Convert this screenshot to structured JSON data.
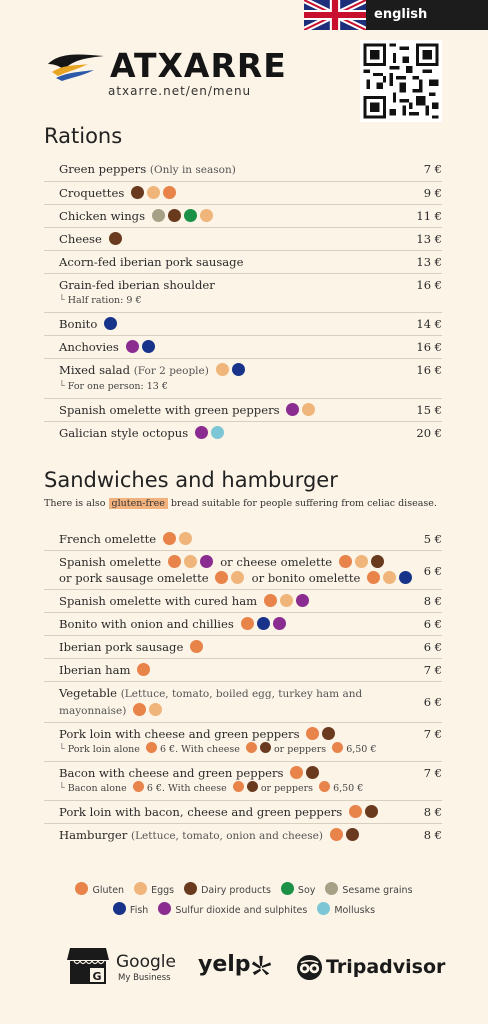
{
  "header": {
    "language": "english",
    "logo_text": "ATXARRE",
    "url": "atxarre.net/en/menu"
  },
  "rations": {
    "title": "Rations",
    "items": [
      {
        "name": "Green peppers",
        "note": "(Only in season)",
        "allergens": [],
        "price": "7 €"
      },
      {
        "name": "Croquettes",
        "allergens": [
          "dairy",
          "eggs",
          "gluten"
        ],
        "price": "9 €"
      },
      {
        "name": "Chicken wings",
        "allergens": [
          "sesame",
          "dairy",
          "soy",
          "eggs"
        ],
        "price": "11 €"
      },
      {
        "name": "Cheese",
        "allergens": [
          "dairy"
        ],
        "price": "13 €"
      },
      {
        "name": "Acorn-fed iberian pork sausage",
        "allergens": [],
        "price": "13 €"
      },
      {
        "name": "Grain-fed iberian shoulder",
        "allergens": [],
        "price": "16 €",
        "sub": "Half ration: 9 €"
      },
      {
        "name": "Bonito",
        "allergens": [
          "fish"
        ],
        "price": "14 €"
      },
      {
        "name": "Anchovies",
        "allergens": [
          "sulfur",
          "fish"
        ],
        "price": "16 €"
      },
      {
        "name": "Mixed salad",
        "note": "(For 2 people)",
        "allergens": [
          "eggs",
          "fish"
        ],
        "price": "16 €",
        "sub": "For one person: 13 €"
      },
      {
        "name": "Spanish omelette with green peppers",
        "allergens": [
          "sulfur",
          "eggs"
        ],
        "price": "15 €"
      },
      {
        "name": "Galician style octopus",
        "allergens": [
          "sulfur",
          "mollusks"
        ],
        "price": "20 €"
      }
    ]
  },
  "sandwiches": {
    "title": "Sandwiches and hamburger",
    "gf_before": "There is also ",
    "gf_word": "gluten-free",
    "gf_after": " bread suitable for people suffering from celiac disease.",
    "price": {
      "french": "5 €",
      "omelette": "6 €",
      "cured": "8 €",
      "bonito": "6 €",
      "iberian_sausage": "6 €",
      "iberian_ham": "7 €",
      "vegetable": "6 €",
      "pork_loin": "7 €",
      "bacon": "7 €",
      "loin_bacon": "8 €",
      "hamburger": "8 €"
    },
    "text": {
      "french": "French omelette",
      "omelette_a": "Spanish omelette",
      "omelette_b": "or cheese omelette",
      "omelette_c": "or pork sausage omelette",
      "omelette_d": "or bonito omelette",
      "cured": "Spanish omelette with cured ham",
      "bonito": "Bonito with onion and chillies",
      "iberian_sausage": "Iberian pork sausage",
      "iberian_ham": "Iberian ham",
      "vegetable": "Vegetable",
      "vegetable_note_1": "(Lettuce, tomato, boiled egg, turkey ham and",
      "vegetable_note_2": "mayonnaise)",
      "pork_loin": "Pork loin with cheese and green peppers",
      "pork_sub_a": "Pork loin alone",
      "pork_sub_b": "6 €. With cheese",
      "pork_sub_c": "or peppers",
      "pork_sub_d": "6,50 €",
      "bacon": "Bacon with cheese and green peppers",
      "bacon_sub_a": "Bacon alone",
      "bacon_sub_b": "6 €. With cheese",
      "bacon_sub_c": "or peppers",
      "bacon_sub_d": "6,50 €",
      "loin_bacon": "Pork loin with bacon, cheese and green peppers",
      "hamburger": "Hamburger",
      "hamburger_note": "(Lettuce, tomato, onion and cheese)"
    }
  },
  "legend": [
    {
      "key": "gluten",
      "label": "Gluten"
    },
    {
      "key": "eggs",
      "label": "Eggs"
    },
    {
      "key": "dairy",
      "label": "Dairy products"
    },
    {
      "key": "soy",
      "label": "Soy"
    },
    {
      "key": "sesame",
      "label": "Sesame grains"
    },
    {
      "key": "fish",
      "label": "Fish"
    },
    {
      "key": "sulfur",
      "label": "Sulfur dioxide and sulphites"
    },
    {
      "key": "mollusks",
      "label": "Mollusks"
    }
  ],
  "colors": {
    "gluten": "#e8834a",
    "eggs": "#efb57a",
    "dairy": "#6a3a1e",
    "soy": "#1a9146",
    "sesame": "#a6a186",
    "fish": "#17348a",
    "sulfur": "#8a2c90",
    "mollusks": "#7cc6d6",
    "background": "#fcf4e7"
  },
  "footer": {
    "google": "Google",
    "google_sub": "My Business",
    "yelp": "yelp",
    "tripadvisor": "Tripadvisor",
    "icons": [
      "google-my-business-icon",
      "yelp-burst-icon",
      "tripadvisor-owl-icon"
    ]
  }
}
